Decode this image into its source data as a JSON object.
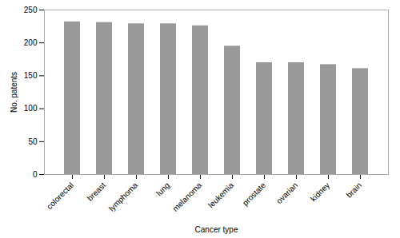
{
  "chart_data": {
    "type": "bar",
    "categories": [
      "colorectal",
      "breast",
      "lymphoma",
      "lung",
      "melanoma",
      "leukemia",
      "prostate",
      "ovarian",
      "kidney",
      "brain"
    ],
    "values": [
      232,
      231,
      229,
      229,
      226,
      195,
      170,
      170,
      167,
      161
    ],
    "color": "#999999",
    "xlabel": "Cancer type",
    "ylabel": "No. patents",
    "ylim": [
      0,
      250
    ],
    "yticks": [
      0,
      50,
      100,
      150,
      200,
      250
    ],
    "grid": false
  }
}
